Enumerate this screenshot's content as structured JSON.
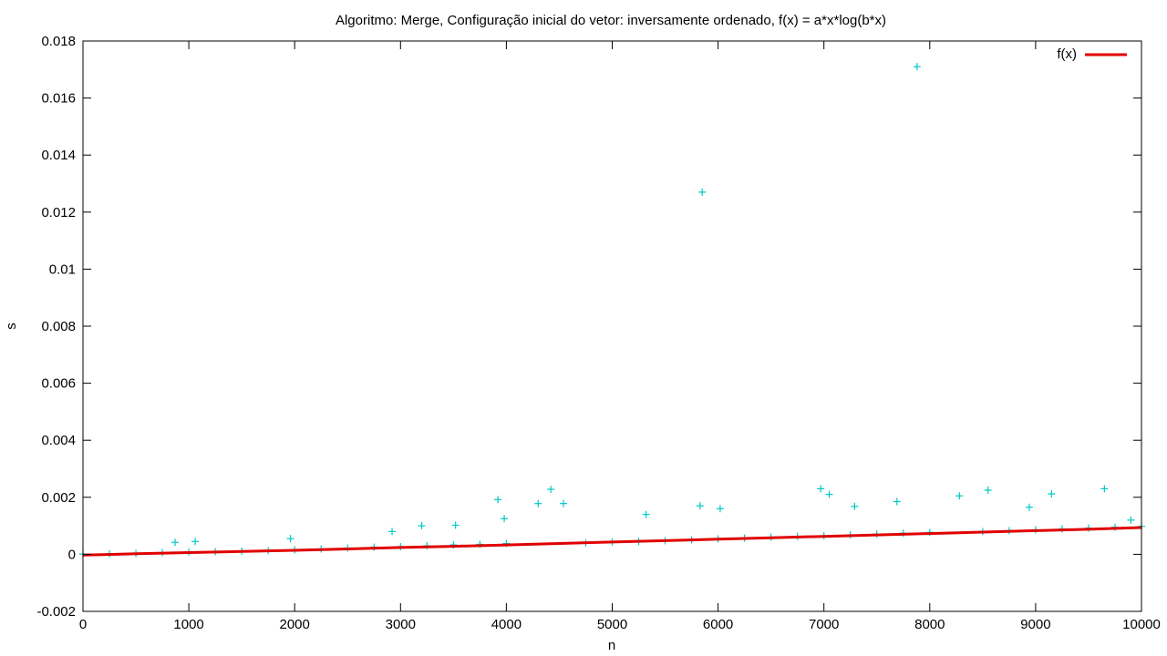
{
  "chart_data": {
    "type": "scatter",
    "title": "Algoritmo: Merge, Configuração inicial do vetor: inversamente ordenado, f(x) = a*x*log(b*x)",
    "xlabel": "n",
    "ylabel": "s",
    "xlim": [
      0,
      10000
    ],
    "ylim": [
      -0.002,
      0.018
    ],
    "x_ticks": [
      0,
      1000,
      2000,
      3000,
      4000,
      5000,
      6000,
      7000,
      8000,
      9000,
      10000
    ],
    "x_tick_labels": [
      "0",
      "1000",
      "2000",
      "3000",
      "4000",
      "5000",
      "6000",
      "7000",
      "8000",
      "9000",
      "10000"
    ],
    "y_ticks": [
      -0.002,
      0,
      0.002,
      0.004,
      0.006,
      0.008,
      0.01,
      0.012,
      0.014,
      0.016,
      0.018
    ],
    "y_tick_labels": [
      "-0.002",
      "0",
      "0.002",
      "0.004",
      "0.006",
      "0.008",
      "0.01",
      "0.012",
      "0.014",
      "0.016",
      "0.018"
    ],
    "grid": false,
    "legend_position": "top-right",
    "series": [
      {
        "kind": "points",
        "marker": "+",
        "color": "#00c8c8",
        "x": [
          0,
          250,
          500,
          750,
          870,
          1000,
          1060,
          1250,
          1500,
          1750,
          1960,
          2000,
          2250,
          2500,
          2750,
          2920,
          3000,
          3200,
          3250,
          3500,
          3520,
          3750,
          3920,
          3980,
          4000,
          4300,
          4420,
          4540,
          4750,
          5000,
          5250,
          5320,
          5500,
          5750,
          5830,
          5850,
          6000,
          6020,
          6250,
          6500,
          6750,
          6970,
          7000,
          7050,
          7250,
          7290,
          7500,
          7690,
          7750,
          7880,
          8000,
          8280,
          8500,
          8550,
          8750,
          8940,
          9000,
          9150,
          9250,
          9500,
          9650,
          9750,
          9900,
          10000
        ],
        "y": [
          1e-05,
          2e-05,
          3e-05,
          6e-05,
          0.00042,
          8e-05,
          0.00045,
          9e-05,
          0.00011,
          0.00013,
          0.00055,
          0.00016,
          0.00019,
          0.00022,
          0.00025,
          0.0008,
          0.00027,
          0.001,
          0.0003,
          0.00033,
          0.00102,
          0.00035,
          0.00192,
          0.00125,
          0.00038,
          0.00178,
          0.00228,
          0.00178,
          0.0004,
          0.00043,
          0.00045,
          0.0014,
          0.00048,
          0.00051,
          0.0017,
          0.0127,
          0.00054,
          0.0016,
          0.00057,
          0.0006,
          0.00063,
          0.0023,
          0.00065,
          0.0021,
          0.00068,
          0.00168,
          0.00071,
          0.00185,
          0.00074,
          0.0171,
          0.00077,
          0.00205,
          0.0008,
          0.00225,
          0.00083,
          0.00165,
          0.00086,
          0.00212,
          0.00089,
          0.00092,
          0.0023,
          0.00095,
          0.0012,
          0.00098
        ]
      },
      {
        "name": "f(x)",
        "kind": "line",
        "color": "#e00000",
        "formula": "a*x*log(b*x)",
        "x": [
          0,
          500,
          1000,
          1500,
          2000,
          2500,
          3000,
          3500,
          4000,
          4500,
          5000,
          5500,
          6000,
          6500,
          7000,
          7500,
          8000,
          8500,
          9000,
          9500,
          10000
        ],
        "y": [
          -3e-05,
          2e-05,
          6e-05,
          0.0001,
          0.00014,
          0.00019,
          0.00024,
          0.00028,
          0.00033,
          0.00038,
          0.00043,
          0.00048,
          0.00053,
          0.00058,
          0.00063,
          0.00068,
          0.00073,
          0.00078,
          0.00083,
          0.00088,
          0.00094
        ]
      }
    ]
  }
}
